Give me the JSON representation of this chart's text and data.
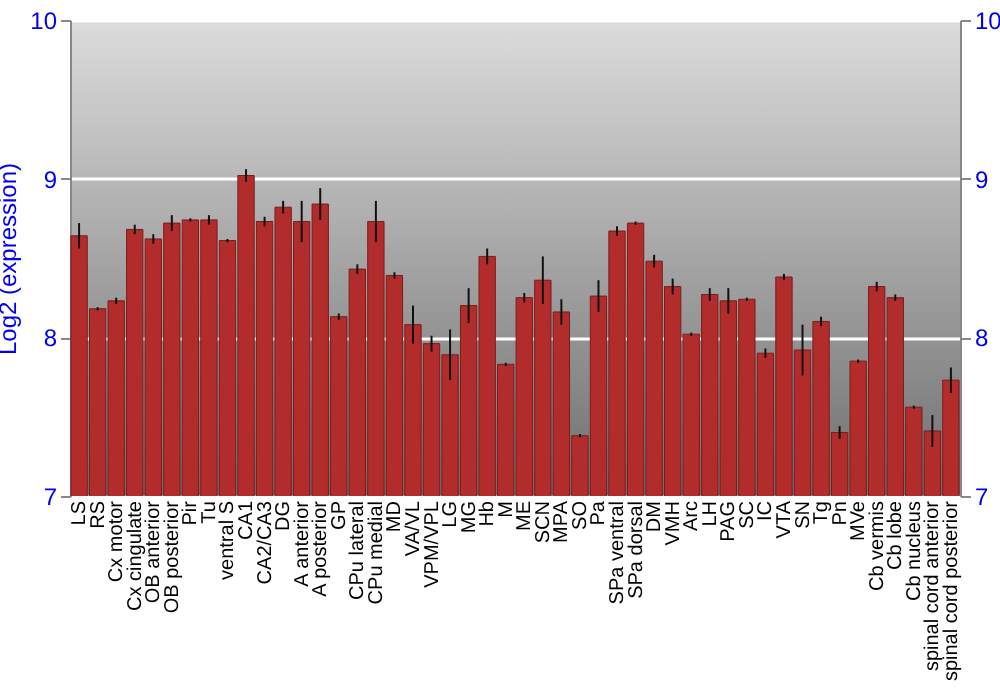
{
  "chart_data": {
    "type": "bar",
    "ylabel": "Log2 (expression)",
    "categories": [
      "LS",
      "RS",
      "Cx motor",
      "Cx cingulate",
      "OB anterior",
      "OB posterior",
      "Pir",
      "Tu",
      "ventral S",
      "CA1",
      "CA2/CA3",
      "DG",
      "A anterior",
      "A posterior",
      "GP",
      "CPu lateral",
      "CPu medial",
      "MD",
      "VA/VL",
      "VPM/VPL",
      "LG",
      "MG",
      "Hb",
      "M",
      "ME",
      "SCN",
      "MPA",
      "SO",
      "Pa",
      "SPa ventral",
      "SPa dorsal",
      "DM",
      "VMH",
      "Arc",
      "LH",
      "PAG",
      "SC",
      "IC",
      "VTA",
      "SN",
      "Tg",
      "Pn",
      "MVe",
      "Cb vermis",
      "Cb lobe",
      "Cb nucleus",
      "spinal cord anterior",
      "spinal cord posterior"
    ],
    "values": [
      8.64,
      8.18,
      8.23,
      8.68,
      8.62,
      8.72,
      8.74,
      8.74,
      8.61,
      9.02,
      8.73,
      8.82,
      8.73,
      8.84,
      8.13,
      8.43,
      8.73,
      8.39,
      8.08,
      7.96,
      7.89,
      8.2,
      8.51,
      7.83,
      8.25,
      8.36,
      8.16,
      7.38,
      8.26,
      8.67,
      8.72,
      8.48,
      8.32,
      8.02,
      8.27,
      8.23,
      8.24,
      7.9,
      8.38,
      7.92,
      8.1,
      7.4,
      7.85,
      8.32,
      8.25,
      7.56,
      7.41,
      7.73
    ],
    "errors": [
      0.08,
      0.01,
      0.02,
      0.03,
      0.03,
      0.05,
      0.01,
      0.03,
      0.01,
      0.04,
      0.03,
      0.04,
      0.13,
      0.1,
      0.02,
      0.03,
      0.13,
      0.02,
      0.12,
      0.05,
      0.16,
      0.11,
      0.05,
      0.01,
      0.03,
      0.15,
      0.08,
      0.01,
      0.1,
      0.03,
      0.01,
      0.04,
      0.05,
      0.01,
      0.04,
      0.08,
      0.01,
      0.03,
      0.02,
      0.16,
      0.03,
      0.04,
      0.01,
      0.03,
      0.02,
      0.01,
      0.1,
      0.08
    ],
    "color": "#b22c2c",
    "ylim": [
      7,
      10
    ],
    "yticks": [
      7,
      8,
      9,
      10
    ],
    "y2lim": [
      7,
      10
    ],
    "y2ticks": [
      7,
      8,
      9,
      10
    ],
    "grid": "y"
  }
}
